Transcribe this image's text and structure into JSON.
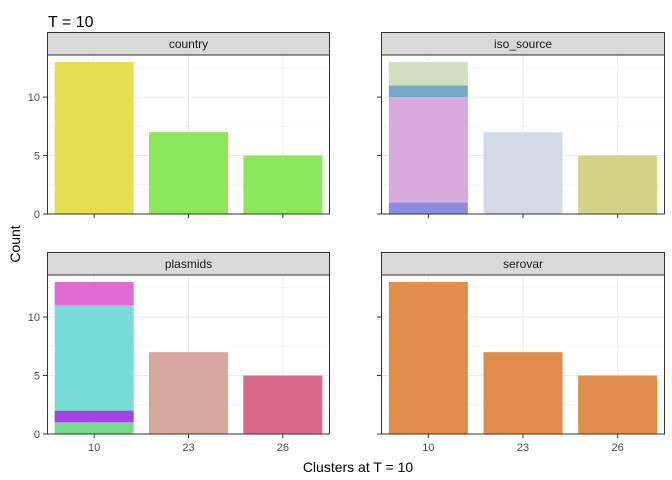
{
  "chart_data": {
    "type": "bar",
    "stacked": true,
    "title": "T = 10",
    "xlabel": "Clusters at T = 10",
    "ylabel": "Count",
    "categories": [
      "10",
      "23",
      "26"
    ],
    "ylim": [
      0,
      13.6
    ],
    "yticks": [
      0,
      5,
      10
    ],
    "grid": true,
    "legend": "none",
    "panels": [
      {
        "name": "country",
        "bars": [
          {
            "category": "10",
            "segments": [
              {
                "value": 13,
                "color": "#E5E04F"
              }
            ]
          },
          {
            "category": "23",
            "segments": [
              {
                "value": 7,
                "color": "#8CE85A"
              }
            ]
          },
          {
            "category": "26",
            "segments": [
              {
                "value": 5,
                "color": "#8CE85A"
              }
            ]
          }
        ]
      },
      {
        "name": "iso_source",
        "bars": [
          {
            "category": "10",
            "segments": [
              {
                "value": 1,
                "color": "#8B8BE0"
              },
              {
                "value": 9,
                "color": "#D8AADE"
              },
              {
                "value": 1,
                "color": "#76A8CC"
              },
              {
                "value": 2,
                "color": "#D0DFBE"
              }
            ]
          },
          {
            "category": "23",
            "segments": [
              {
                "value": 7,
                "color": "#D3DAE6"
              }
            ]
          },
          {
            "category": "26",
            "segments": [
              {
                "value": 5,
                "color": "#D3D385"
              }
            ]
          }
        ]
      },
      {
        "name": "plasmids",
        "bars": [
          {
            "category": "10",
            "segments": [
              {
                "value": 1,
                "color": "#78D98E"
              },
              {
                "value": 1,
                "color": "#A840E8"
              },
              {
                "value": 9,
                "color": "#78DBD6"
              },
              {
                "value": 2,
                "color": "#DE6BD2"
              }
            ]
          },
          {
            "category": "23",
            "segments": [
              {
                "value": 7,
                "color": "#D5A89B"
              }
            ]
          },
          {
            "category": "26",
            "segments": [
              {
                "value": 5,
                "color": "#DB6A8A"
              }
            ]
          }
        ]
      },
      {
        "name": "serovar",
        "bars": [
          {
            "category": "10",
            "segments": [
              {
                "value": 13,
                "color": "#E08C4A"
              }
            ]
          },
          {
            "category": "23",
            "segments": [
              {
                "value": 7,
                "color": "#E08C4A"
              }
            ]
          },
          {
            "category": "26",
            "segments": [
              {
                "value": 5,
                "color": "#E08C4A"
              }
            ]
          }
        ]
      }
    ]
  }
}
